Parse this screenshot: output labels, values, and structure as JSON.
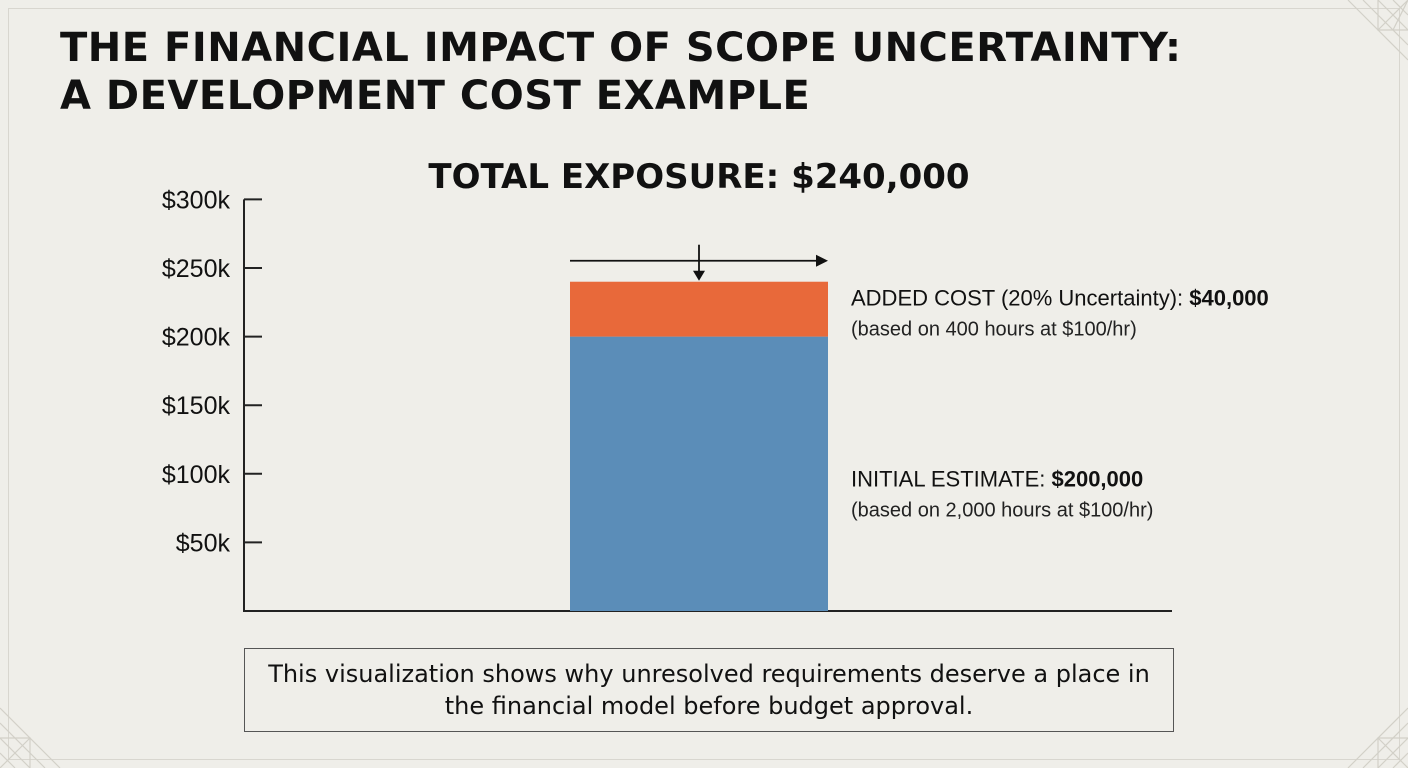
{
  "title": {
    "line1": "THE FINANCIAL IMPACT OF SCOPE UNCERTAINTY:",
    "line2": "A DEVELOPMENT COST EXAMPLE"
  },
  "chart_data": {
    "type": "bar",
    "stacked": true,
    "title": "TOTAL EXPOSURE: $240,000",
    "ylim": [
      0,
      300
    ],
    "y_unit": "k",
    "y_ticks": [
      "$300k",
      "$250k",
      "$200k",
      "$150k",
      "$100k",
      "$50k"
    ],
    "y_tick_values": [
      300,
      250,
      200,
      150,
      100,
      50
    ],
    "grid": false,
    "series": [
      {
        "id": "initial",
        "name_prefix": "INITIAL ESTIMATE: ",
        "name_value": "$200,000",
        "sublabel": "(based on 2,000 hours at $100/hr)",
        "value": 200,
        "color": "#5b8db8"
      },
      {
        "id": "added",
        "name_prefix": "ADDED COST (20% Uncertainty): ",
        "name_value": "$40,000",
        "sublabel": "(based on 400 hours at $100/hr)",
        "value": 40,
        "color": "#e8693a"
      }
    ]
  },
  "note": "This visualization shows why unresolved requirements deserve a place in the financial model before budget approval."
}
